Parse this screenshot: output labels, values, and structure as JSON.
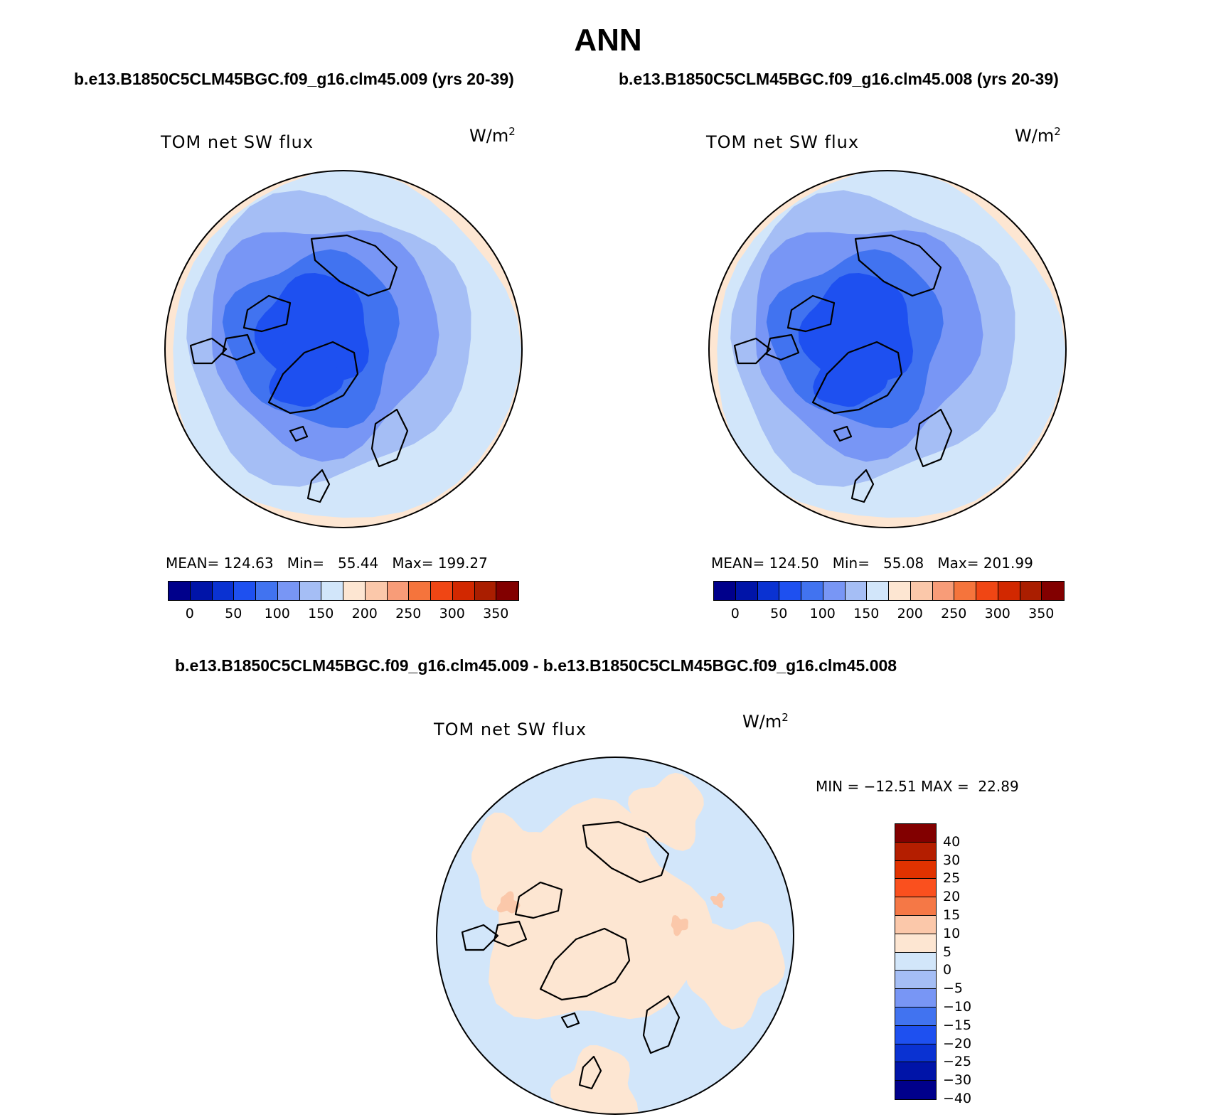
{
  "figure": {
    "title": "ANN",
    "subtitle_left": "b.e13.B1850C5CLM45BGC.f09_g16.clm45.009 (yrs 20-39)",
    "subtitle_right": "b.e13.B1850C5CLM45BGC.f09_g16.clm45.008 (yrs 20-39)",
    "subtitle_diff": "b.e13.B1850C5CLM45BGC.f09_g16.clm45.009 - b.e13.B1850C5CLM45BGC.f09_g16.clm45.008"
  },
  "panels": [
    {
      "label": "TOM net SW flux",
      "units_base": "W/m",
      "units_exp": "2",
      "stats_text": "MEAN= 124.63   Min=   55.44   Max= 199.27"
    },
    {
      "label": "TOM net SW flux",
      "units_base": "W/m",
      "units_exp": "2",
      "stats_text": "MEAN= 124.50   Min=   55.08   Max= 201.99"
    },
    {
      "label": "TOM net SW flux",
      "units_base": "W/m",
      "units_exp": "2",
      "stats_text": "MIN = −12.51 MAX =  22.89"
    }
  ],
  "colorbar_abs": {
    "colors": [
      "#00008b",
      "#0014a8",
      "#0a32d2",
      "#1e50f0",
      "#4173f0",
      "#7896f5",
      "#a5bef5",
      "#d2e6fa",
      "#fde6d2",
      "#fbc8aa",
      "#f89c78",
      "#f5743c",
      "#f04614",
      "#d22800",
      "#aa1e00",
      "#820000"
    ],
    "labels": [
      "0",
      "50",
      "100",
      "150",
      "200",
      "250",
      "300",
      "350"
    ]
  },
  "colorbar_diff": {
    "colors": [
      "#820000",
      "#b41e00",
      "#e13200",
      "#fa501e",
      "#f57846",
      "#fbc8aa",
      "#fde6d2",
      "#d2e6fa",
      "#a5bef5",
      "#7896f5",
      "#4173f0",
      "#1e50f0",
      "#0a32d2",
      "#0014a8",
      "#00008b"
    ],
    "labels": [
      "40",
      "30",
      "25",
      "20",
      "15",
      "10",
      "5",
      "0",
      "−5",
      "−10",
      "−15",
      "−20",
      "−25",
      "−30",
      "−40"
    ]
  },
  "chart_data": [
    {
      "type": "heatmap",
      "title": "TOM net SW flux",
      "units": "W/m2",
      "levels": [
        0,
        25,
        50,
        75,
        100,
        125,
        150,
        175,
        200,
        225,
        250,
        275,
        300,
        325,
        350
      ],
      "mean": 124.63,
      "min": 55.44,
      "max": 199.27
    },
    {
      "type": "heatmap",
      "title": "TOM net SW flux",
      "units": "W/m2",
      "levels": [
        0,
        25,
        50,
        75,
        100,
        125,
        150,
        175,
        200,
        225,
        250,
        275,
        300,
        325,
        350
      ],
      "mean": 124.5,
      "min": 55.08,
      "max": 201.99
    },
    {
      "type": "heatmap",
      "title": "TOM net SW flux",
      "units": "W/m2",
      "levels": [
        -40,
        -30,
        -25,
        -20,
        -15,
        -10,
        -5,
        0,
        5,
        10,
        15,
        20,
        25,
        30,
        40
      ],
      "min": -12.51,
      "max": 22.89
    }
  ]
}
